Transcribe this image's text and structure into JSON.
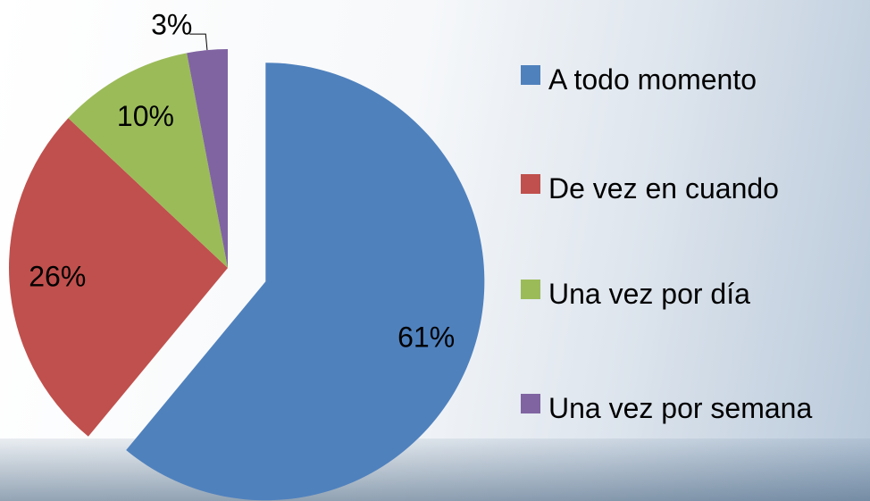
{
  "chart_data": {
    "type": "pie",
    "categories": [
      "A todo momento",
      "De vez en cuando",
      "Una vez por día",
      "Una vez por semana"
    ],
    "values": [
      61,
      26,
      10,
      3
    ],
    "value_labels": [
      "61%",
      "26%",
      "10%",
      "3%"
    ],
    "colors": [
      "#4f81bd",
      "#c0504d",
      "#9bbb59",
      "#8064a2"
    ],
    "legend": "right"
  }
}
